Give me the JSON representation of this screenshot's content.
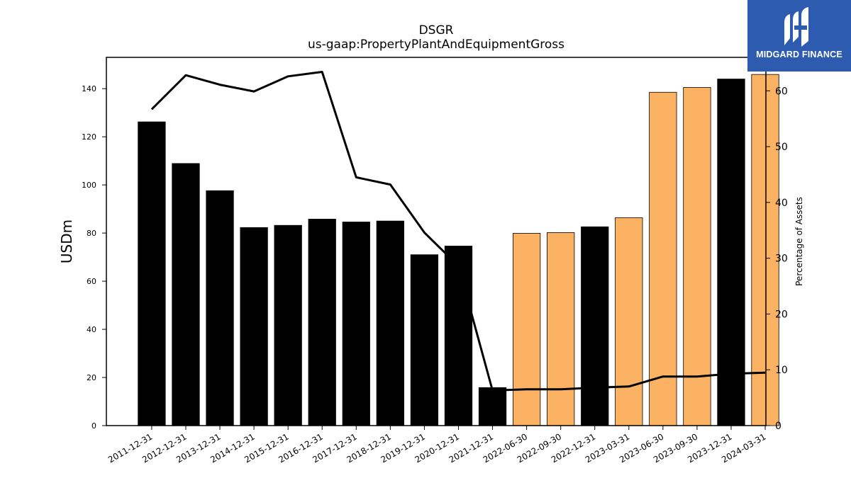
{
  "chart_data": {
    "type": "bar",
    "title": "DSGR",
    "subtitle": "us-gaap:PropertyPlantAndEquipmentGross",
    "ylabel": "USDm",
    "ylabel_right": "Percentage of Assets",
    "ylim": [
      0,
      153
    ],
    "ylim_right": [
      0,
      66
    ],
    "yticks": [
      0,
      20,
      40,
      60,
      80,
      100,
      120,
      140
    ],
    "yticks_right": [
      0,
      10,
      20,
      30,
      40,
      50,
      60
    ],
    "categories": [
      "2011-12-31",
      "2012-12-31",
      "2013-12-31",
      "2014-12-31",
      "2015-12-31",
      "2016-12-31",
      "2017-12-31",
      "2018-12-31",
      "2019-12-31",
      "2020-12-31",
      "2021-12-31",
      "2022-06-30",
      "2022-09-30",
      "2022-12-31",
      "2023-03-31",
      "2023-06-30",
      "2023-09-30",
      "2023-12-31",
      "2024-03-31"
    ],
    "series": [
      {
        "values": [
          126.2,
          108.9,
          97.6,
          82.3,
          83.2,
          85.8,
          84.6,
          85.0,
          71.0,
          74.6,
          15.8,
          79.9,
          80.2,
          82.6,
          86.4,
          138.5,
          140.5,
          144.0,
          145.9
        ],
        "bar_colors": [
          "#000000",
          "#000000",
          "#000000",
          "#000000",
          "#000000",
          "#000000",
          "#000000",
          "#000000",
          "#000000",
          "#000000",
          "#000000",
          "#fbb262",
          "#fbb262",
          "#000000",
          "#fbb262",
          "#fbb262",
          "#fbb262",
          "#000000",
          "#fbb262"
        ]
      },
      {
        "axis": "right",
        "type": "line",
        "color": "#000000",
        "values": [
          56.7,
          62.8,
          61.1,
          59.9,
          62.6,
          63.4,
          44.5,
          43.2,
          34.6,
          28.6,
          6.3,
          6.5,
          6.5,
          6.8,
          7.0,
          8.8,
          8.8,
          9.3,
          9.5
        ]
      }
    ],
    "grid": false,
    "legend": "none"
  },
  "logo": {
    "text": "MIDGARD FINANCE",
    "background": "#2d5bb0"
  }
}
